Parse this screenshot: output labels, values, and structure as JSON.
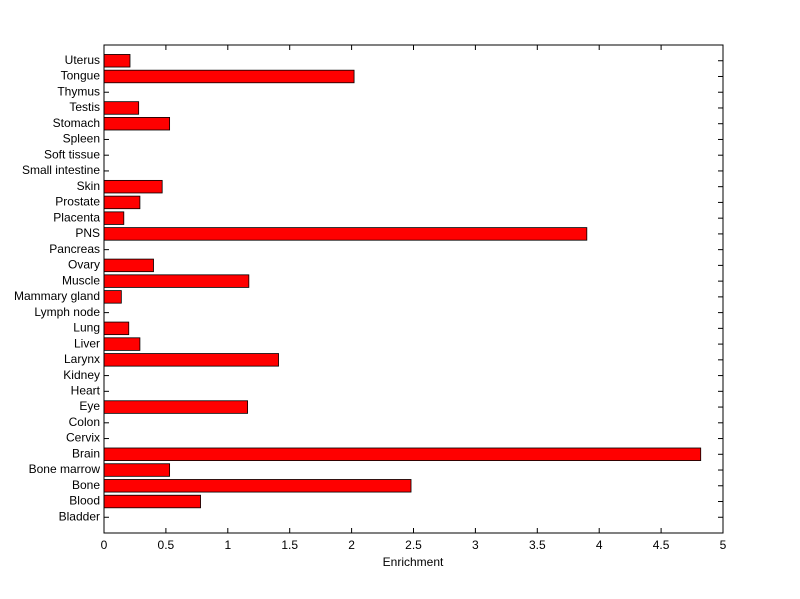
{
  "chart_data": {
    "type": "barh",
    "xlabel": "Enrichment",
    "categories": [
      "Uterus",
      "Tongue",
      "Thymus",
      "Testis",
      "Stomach",
      "Spleen",
      "Soft tissue",
      "Small intestine",
      "Skin",
      "Prostate",
      "Placenta",
      "PNS",
      "Pancreas",
      "Ovary",
      "Muscle",
      "Mammary gland",
      "Lymph node",
      "Lung",
      "Liver",
      "Larynx",
      "Kidney",
      "Heart",
      "Eye",
      "Colon",
      "Cervix",
      "Brain",
      "Bone marrow",
      "Bone",
      "Blood",
      "Bladder"
    ],
    "values": [
      0.21,
      2.02,
      0,
      0.28,
      0.53,
      0,
      0,
      0,
      0.47,
      0.29,
      0.16,
      3.9,
      0,
      0.4,
      1.17,
      0.14,
      0,
      0.2,
      0.29,
      1.41,
      0,
      0,
      1.16,
      0,
      0,
      4.82,
      0.53,
      2.48,
      0.78,
      0
    ],
    "color": "#ff0000",
    "xlim": [
      0,
      5
    ],
    "xticks": [
      0,
      0.5,
      1,
      1.5,
      2,
      2.5,
      3,
      3.5,
      4,
      4.5,
      5
    ]
  }
}
